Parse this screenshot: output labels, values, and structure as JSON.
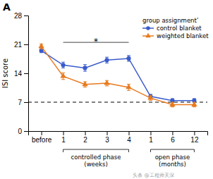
{
  "chart_data": {
    "type": "line",
    "title": "A",
    "ylabel": "ISI score",
    "categories": [
      "before",
      "1",
      "2",
      "3",
      "4",
      "1",
      "6",
      "12"
    ],
    "ylim": [
      0,
      28
    ],
    "yticks": [
      0,
      7,
      14,
      21,
      28
    ],
    "grid": false,
    "legend": "upper right",
    "legend_title": "group assignment’",
    "series": [
      {
        "name": "control blanket",
        "color": "#3a5bcc",
        "marker": "circle",
        "values": [
          19.5,
          16.0,
          15.3,
          17.2,
          17.6,
          8.4,
          7.4,
          7.4
        ],
        "errors": [
          0.5,
          0.7,
          0.8,
          0.7,
          0.7,
          0.5,
          0.45,
          0.45
        ]
      },
      {
        "name": "weighted blanket",
        "color": "#e87a1e",
        "marker": "triangle",
        "values": [
          20.5,
          13.3,
          11.3,
          11.6,
          10.6,
          8.0,
          6.4,
          6.4
        ],
        "errors": [
          0.6,
          0.8,
          0.65,
          0.65,
          0.75,
          0.55,
          0.55,
          0.55
        ]
      }
    ],
    "annotations": [
      {
        "type": "hline",
        "y": 7,
        "line_style": "dashed"
      },
      {
        "type": "bracket",
        "x1": 1,
        "x2": 4,
        "y": 21.5,
        "label": "*",
        "label_y": 22.0
      },
      {
        "type": "span",
        "x1": 1,
        "x2": 4,
        "label": "controlled phase\n(weeks)"
      },
      {
        "type": "span",
        "x1": 5,
        "x2": 7,
        "label": "open phase\n(months)"
      }
    ],
    "watermark": "头条 @工程师天深"
  }
}
